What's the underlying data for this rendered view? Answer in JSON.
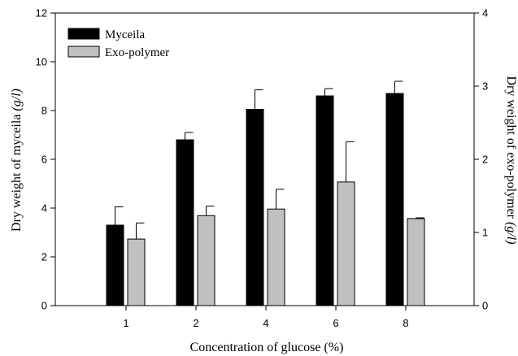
{
  "chart_data": {
    "type": "bar",
    "categories": [
      "1",
      "2",
      "4",
      "6",
      "8"
    ],
    "xlabel": "Concentration of glucose (%)",
    "ylabel_left": {
      "main": "Dry weight of myceila ",
      "unit": "(g/l)"
    },
    "ylabel_right": {
      "main": "Dry weight of exo-polymer ",
      "unit": "(g/l)"
    },
    "ylim_left": [
      0,
      12
    ],
    "ylim_right": [
      0,
      4
    ],
    "yticks_left": [
      "0",
      "2",
      "4",
      "6",
      "8",
      "10",
      "12"
    ],
    "yticks_right": [
      "0",
      "1",
      "2",
      "3",
      "4"
    ],
    "legend_position": "top-left",
    "series": [
      {
        "name": "Myceila",
        "axis": "left",
        "color": "#000000",
        "values": [
          3.3,
          6.8,
          8.05,
          8.6,
          8.7
        ],
        "errors": [
          0.75,
          0.3,
          0.8,
          0.3,
          0.5
        ]
      },
      {
        "name": "Exo-polymer",
        "axis": "right",
        "color": "#c0c0c0",
        "values": [
          0.91,
          1.23,
          1.32,
          1.69,
          1.19
        ],
        "errors": [
          0.22,
          0.13,
          0.27,
          0.55,
          0.01
        ]
      }
    ]
  }
}
